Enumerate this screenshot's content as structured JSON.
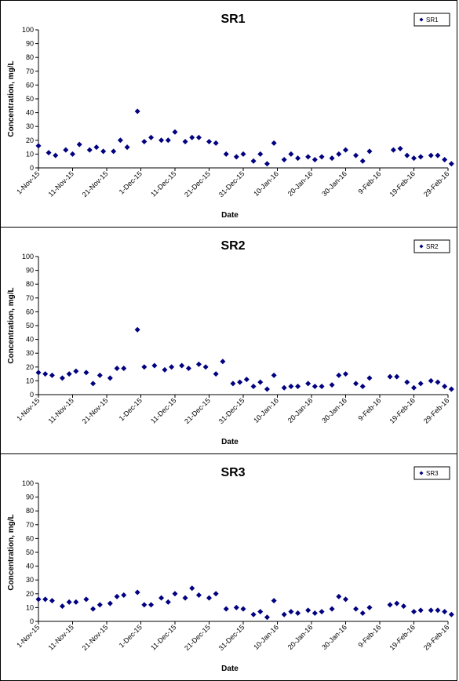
{
  "chart_data": [
    {
      "type": "scatter",
      "title": "SR1",
      "xlabel": "Date",
      "ylabel": "Concentration, mg/L",
      "ylim": [
        0,
        100
      ],
      "yticks": [
        "0",
        "10",
        "20",
        "30",
        "40",
        "50",
        "60",
        "70",
        "80",
        "90",
        "100"
      ],
      "xlim": [
        "2015-11-01",
        "2016-02-29"
      ],
      "xtick_labels": [
        "1-Nov-15",
        "11-Nov-15",
        "21-Nov-15",
        "1-Dec-15",
        "11-Dec-15",
        "21-Dec-15",
        "31-Dec-15",
        "10-Jan-16",
        "20-Jan-16",
        "30-Jan-16",
        "9-Feb-16",
        "19-Feb-16",
        "29-Feb-16"
      ],
      "grid": false,
      "legend": "top-right",
      "marker": "diamond",
      "color": "#000080",
      "series": [
        {
          "name": "SR1",
          "x": [
            "2015-11-01",
            "2015-11-04",
            "2015-11-06",
            "2015-11-09",
            "2015-11-11",
            "2015-11-13",
            "2015-11-16",
            "2015-11-18",
            "2015-11-20",
            "2015-11-23",
            "2015-11-25",
            "2015-11-27",
            "2015-11-30",
            "2015-12-02",
            "2015-12-04",
            "2015-12-07",
            "2015-12-09",
            "2015-12-11",
            "2015-12-14",
            "2015-12-16",
            "2015-12-18",
            "2015-12-21",
            "2015-12-23",
            "2015-12-26",
            "2015-12-29",
            "2015-12-31",
            "2016-01-03",
            "2016-01-05",
            "2016-01-07",
            "2016-01-09",
            "2016-01-12",
            "2016-01-14",
            "2016-01-16",
            "2016-01-19",
            "2016-01-21",
            "2016-01-23",
            "2016-01-26",
            "2016-01-28",
            "2016-01-30",
            "2016-02-02",
            "2016-02-04",
            "2016-02-06",
            "2016-02-13",
            "2016-02-15",
            "2016-02-17",
            "2016-02-19",
            "2016-02-21",
            "2016-02-24",
            "2016-02-26",
            "2016-02-28",
            "2016-03-01"
          ],
          "values": [
            16,
            11,
            9,
            13,
            10,
            17,
            13,
            15,
            12,
            12,
            20,
            15,
            41,
            19,
            22,
            20,
            20,
            26,
            19,
            22,
            22,
            19,
            18,
            10,
            8,
            10,
            5,
            10,
            3,
            18,
            6,
            10,
            7,
            8,
            6,
            8,
            7,
            10,
            13,
            9,
            5,
            12,
            13,
            14,
            9,
            7,
            8,
            9,
            9,
            6,
            3
          ]
        }
      ]
    },
    {
      "type": "scatter",
      "title": "SR2",
      "xlabel": "Date",
      "ylabel": "Concentration, mg/L",
      "ylim": [
        0,
        100
      ],
      "yticks": [
        "0",
        "10",
        "20",
        "30",
        "40",
        "50",
        "60",
        "70",
        "80",
        "90",
        "100"
      ],
      "xlim": [
        "2015-11-01",
        "2016-02-29"
      ],
      "xtick_labels": [
        "1-Nov-15",
        "11-Nov-15",
        "21-Nov-15",
        "1-Dec-15",
        "11-Dec-15",
        "21-Dec-15",
        "31-Dec-15",
        "10-Jan-16",
        "20-Jan-16",
        "30-Jan-16",
        "9-Feb-16",
        "19-Feb-16",
        "29-Feb-16"
      ],
      "grid": false,
      "legend": "top-right",
      "marker": "diamond",
      "color": "#000080",
      "series": [
        {
          "name": "SR2",
          "x": [
            "2015-11-01",
            "2015-11-03",
            "2015-11-05",
            "2015-11-08",
            "2015-11-10",
            "2015-11-12",
            "2015-11-15",
            "2015-11-17",
            "2015-11-19",
            "2015-11-22",
            "2015-11-24",
            "2015-11-26",
            "2015-11-30",
            "2015-12-02",
            "2015-12-05",
            "2015-12-08",
            "2015-12-10",
            "2015-12-13",
            "2015-12-15",
            "2015-12-18",
            "2015-12-20",
            "2015-12-23",
            "2015-12-25",
            "2015-12-28",
            "2015-12-30",
            "2016-01-01",
            "2016-01-03",
            "2016-01-05",
            "2016-01-07",
            "2016-01-09",
            "2016-01-12",
            "2016-01-14",
            "2016-01-16",
            "2016-01-19",
            "2016-01-21",
            "2016-01-23",
            "2016-01-26",
            "2016-01-28",
            "2016-01-30",
            "2016-02-02",
            "2016-02-04",
            "2016-02-06",
            "2016-02-12",
            "2016-02-14",
            "2016-02-17",
            "2016-02-19",
            "2016-02-21",
            "2016-02-24",
            "2016-02-26",
            "2016-02-28",
            "2016-03-01"
          ],
          "values": [
            16,
            15,
            14,
            12,
            15,
            17,
            16,
            8,
            14,
            12,
            19,
            19,
            47,
            20,
            21,
            18,
            20,
            21,
            19,
            22,
            20,
            15,
            24,
            8,
            9,
            11,
            6,
            9,
            4,
            14,
            5,
            6,
            6,
            8,
            6,
            6,
            7,
            14,
            15,
            8,
            6,
            12,
            13,
            13,
            9,
            5,
            8,
            10,
            9,
            6,
            4
          ]
        }
      ]
    },
    {
      "type": "scatter",
      "title": "SR3",
      "xlabel": "Date",
      "ylabel": "Concentration, mg/L",
      "ylim": [
        0,
        100
      ],
      "yticks": [
        "0",
        "10",
        "20",
        "30",
        "40",
        "50",
        "60",
        "70",
        "80",
        "90",
        "100"
      ],
      "xlim": [
        "2015-11-01",
        "2016-02-29"
      ],
      "xtick_labels": [
        "1-Nov-15",
        "11-Nov-15",
        "21-Nov-15",
        "1-Dec-15",
        "11-Dec-15",
        "21-Dec-15",
        "31-Dec-15",
        "10-Jan-16",
        "20-Jan-16",
        "30-Jan-16",
        "9-Feb-16",
        "19-Feb-16",
        "29-Feb-16"
      ],
      "grid": false,
      "legend": "top-right",
      "marker": "diamond",
      "color": "#000080",
      "series": [
        {
          "name": "SR3",
          "x": [
            "2015-11-01",
            "2015-11-03",
            "2015-11-05",
            "2015-11-08",
            "2015-11-10",
            "2015-11-12",
            "2015-11-15",
            "2015-11-17",
            "2015-11-19",
            "2015-11-22",
            "2015-11-24",
            "2015-11-26",
            "2015-11-30",
            "2015-12-02",
            "2015-12-04",
            "2015-12-07",
            "2015-12-09",
            "2015-12-11",
            "2015-12-14",
            "2015-12-16",
            "2015-12-18",
            "2015-12-21",
            "2015-12-23",
            "2015-12-26",
            "2015-12-29",
            "2015-12-31",
            "2016-01-03",
            "2016-01-05",
            "2016-01-07",
            "2016-01-09",
            "2016-01-12",
            "2016-01-14",
            "2016-01-16",
            "2016-01-19",
            "2016-01-21",
            "2016-01-23",
            "2016-01-26",
            "2016-01-28",
            "2016-01-30",
            "2016-02-02",
            "2016-02-04",
            "2016-02-06",
            "2016-02-12",
            "2016-02-14",
            "2016-02-16",
            "2016-02-19",
            "2016-02-21",
            "2016-02-24",
            "2016-02-26",
            "2016-02-28",
            "2016-03-01"
          ],
          "values": [
            16,
            16,
            15,
            11,
            14,
            14,
            16,
            9,
            12,
            13,
            18,
            19,
            21,
            12,
            12,
            17,
            14,
            20,
            17,
            24,
            19,
            17,
            20,
            9,
            10,
            9,
            5,
            7,
            3,
            15,
            5,
            7,
            6,
            8,
            6,
            7,
            9,
            18,
            16,
            9,
            6,
            10,
            12,
            13,
            11,
            7,
            8,
            8,
            8,
            7,
            5
          ]
        }
      ]
    }
  ]
}
